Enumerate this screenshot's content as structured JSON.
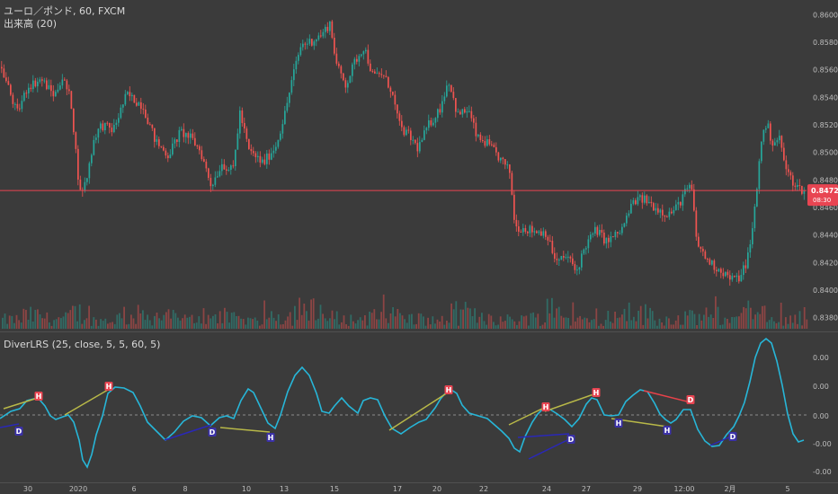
{
  "symbol_line": "ユーロ／ポンド, 60, FXCM",
  "volume_line": "出来高 (20)",
  "indicator_line": "DiverLRS (25, close, 5, 5, 60, 5)",
  "colors": {
    "background": "#3b3b3b",
    "up": "#26a69a",
    "down": "#ef5350",
    "price_line": "#e84552",
    "osc": "#27b6d8",
    "zero": "#8c8c8c",
    "bull_div": "#2a28b8",
    "bear_div": "#b8b848",
    "red_div": "#e8424a",
    "axis_text": "#bdbdbd"
  },
  "chart_data": [
    {
      "type": "candlestick",
      "title": "ユーロ／ポンド, 60, FXCM",
      "y_ticks": [
        "0.86000",
        "0.85800",
        "0.85600",
        "0.85400",
        "0.85200",
        "0.85000",
        "0.84800",
        "0.84600",
        "0.84400",
        "0.84200",
        "0.84000",
        "0.83800"
      ],
      "ylim": [
        0.8372,
        0.8608
      ],
      "last_price": "0.84723",
      "countdown": "08:30",
      "x_ticks": [
        "30",
        "2020",
        "6",
        "8",
        "10",
        "13",
        "15",
        "17",
        "20",
        "22",
        "24",
        "27",
        "29",
        "12:00",
        "2月",
        "5"
      ],
      "path_points": [
        [
          0,
          0.8562
        ],
        [
          8,
          0.8548
        ],
        [
          18,
          0.8528
        ],
        [
          30,
          0.8548
        ],
        [
          45,
          0.8553
        ],
        [
          60,
          0.8541
        ],
        [
          68,
          0.8555
        ],
        [
          78,
          0.8538
        ],
        [
          88,
          0.847
        ],
        [
          95,
          0.8479
        ],
        [
          104,
          0.8511
        ],
        [
          112,
          0.852
        ],
        [
          125,
          0.8516
        ],
        [
          140,
          0.8542
        ],
        [
          158,
          0.8534
        ],
        [
          172,
          0.8508
        ],
        [
          186,
          0.8498
        ],
        [
          200,
          0.8515
        ],
        [
          212,
          0.851
        ],
        [
          222,
          0.8501
        ],
        [
          234,
          0.8476
        ],
        [
          246,
          0.8492
        ],
        [
          258,
          0.8486
        ],
        [
          266,
          0.8529
        ],
        [
          276,
          0.8501
        ],
        [
          292,
          0.8492
        ],
        [
          306,
          0.8505
        ],
        [
          316,
          0.8528
        ],
        [
          324,
          0.8553
        ],
        [
          334,
          0.8578
        ],
        [
          346,
          0.8581
        ],
        [
          358,
          0.8586
        ],
        [
          366,
          0.8594
        ],
        [
          374,
          0.8562
        ],
        [
          384,
          0.8549
        ],
        [
          394,
          0.8566
        ],
        [
          404,
          0.8577
        ],
        [
          414,
          0.8555
        ],
        [
          424,
          0.8557
        ],
        [
          434,
          0.8546
        ],
        [
          444,
          0.8518
        ],
        [
          454,
          0.8512
        ],
        [
          464,
          0.8503
        ],
        [
          476,
          0.852
        ],
        [
          488,
          0.8531
        ],
        [
          498,
          0.8553
        ],
        [
          508,
          0.8527
        ],
        [
          520,
          0.8531
        ],
        [
          530,
          0.851
        ],
        [
          540,
          0.8507
        ],
        [
          552,
          0.8498
        ],
        [
          566,
          0.8486
        ],
        [
          572,
          0.8446
        ],
        [
          582,
          0.8445
        ],
        [
          594,
          0.8443
        ],
        [
          606,
          0.8442
        ],
        [
          618,
          0.842
        ],
        [
          630,
          0.8425
        ],
        [
          640,
          0.8413
        ],
        [
          650,
          0.8432
        ],
        [
          662,
          0.8444
        ],
        [
          674,
          0.8435
        ],
        [
          690,
          0.8443
        ],
        [
          704,
          0.8465
        ],
        [
          716,
          0.8466
        ],
        [
          728,
          0.846
        ],
        [
          742,
          0.8455
        ],
        [
          752,
          0.846
        ],
        [
          760,
          0.847
        ],
        [
          768,
          0.8476
        ],
        [
          774,
          0.8435
        ],
        [
          782,
          0.8425
        ],
        [
          792,
          0.8418
        ],
        [
          802,
          0.8414
        ],
        [
          812,
          0.8408
        ],
        [
          820,
          0.8408
        ],
        [
          828,
          0.8418
        ],
        [
          834,
          0.8433
        ],
        [
          840,
          0.8468
        ],
        [
          846,
          0.851
        ],
        [
          852,
          0.8521
        ],
        [
          858,
          0.8507
        ],
        [
          866,
          0.851
        ],
        [
          874,
          0.8486
        ],
        [
          882,
          0.8478
        ],
        [
          888,
          0.8474
        ],
        [
          894,
          0.8472
        ]
      ]
    },
    {
      "type": "bar",
      "title": "出来高 (20)",
      "note": "volume histogram, relative heights 0-1",
      "levels": [
        0.35,
        0.55,
        0.4,
        0.7,
        0.3,
        0.45,
        0.6,
        0.5,
        0.35,
        0.65,
        0.4,
        0.3,
        0.55,
        0.8,
        0.45,
        0.35,
        0.5,
        0.6,
        0.4,
        0.3,
        0.7,
        0.55,
        0.35,
        0.45,
        0.9,
        0.4,
        0.3,
        0.5,
        0.65,
        0.35,
        0.45,
        0.55,
        0.4,
        0.6,
        0.3,
        0.5
      ]
    },
    {
      "type": "line",
      "title": "DiverLRS (25, close, 5, 5, 60, 5)",
      "y_ticks": [
        "0.00",
        "0.00",
        "0.00",
        "-0.00",
        "-0.00"
      ],
      "osc_points": [
        [
          0,
          466
        ],
        [
          12,
          458
        ],
        [
          22,
          455
        ],
        [
          30,
          446
        ],
        [
          38,
          444
        ],
        [
          44,
          445
        ],
        [
          50,
          452
        ],
        [
          56,
          463
        ],
        [
          62,
          467
        ],
        [
          70,
          464
        ],
        [
          76,
          462
        ],
        [
          82,
          470
        ],
        [
          88,
          490
        ],
        [
          92,
          512
        ],
        [
          97,
          520
        ],
        [
          102,
          506
        ],
        [
          107,
          484
        ],
        [
          114,
          463
        ],
        [
          120,
          438
        ],
        [
          128,
          431
        ],
        [
          138,
          432
        ],
        [
          148,
          437
        ],
        [
          156,
          452
        ],
        [
          164,
          470
        ],
        [
          174,
          480
        ],
        [
          184,
          490
        ],
        [
          194,
          481
        ],
        [
          204,
          469
        ],
        [
          214,
          463
        ],
        [
          224,
          465
        ],
        [
          234,
          474
        ],
        [
          244,
          465
        ],
        [
          252,
          463
        ],
        [
          260,
          466
        ],
        [
          268,
          446
        ],
        [
          276,
          433
        ],
        [
          282,
          437
        ],
        [
          290,
          454
        ],
        [
          298,
          471
        ],
        [
          306,
          477
        ],
        [
          312,
          462
        ],
        [
          320,
          436
        ],
        [
          328,
          418
        ],
        [
          336,
          409
        ],
        [
          344,
          418
        ],
        [
          352,
          438
        ],
        [
          358,
          458
        ],
        [
          366,
          460
        ],
        [
          372,
          452
        ],
        [
          380,
          443
        ],
        [
          388,
          452
        ],
        [
          398,
          460
        ],
        [
          404,
          446
        ],
        [
          412,
          443
        ],
        [
          420,
          445
        ],
        [
          428,
          463
        ],
        [
          436,
          477
        ],
        [
          446,
          483
        ],
        [
          456,
          476
        ],
        [
          466,
          470
        ],
        [
          474,
          467
        ],
        [
          484,
          454
        ],
        [
          490,
          444
        ],
        [
          496,
          437
        ],
        [
          502,
          434
        ],
        [
          508,
          438
        ],
        [
          514,
          451
        ],
        [
          522,
          460
        ],
        [
          532,
          463
        ],
        [
          542,
          466
        ],
        [
          550,
          473
        ],
        [
          558,
          480
        ],
        [
          566,
          488
        ],
        [
          572,
          499
        ],
        [
          578,
          503
        ],
        [
          584,
          486
        ],
        [
          592,
          470
        ],
        [
          598,
          461
        ],
        [
          604,
          455
        ],
        [
          612,
          456
        ],
        [
          620,
          461
        ],
        [
          628,
          467
        ],
        [
          636,
          475
        ],
        [
          644,
          466
        ],
        [
          652,
          450
        ],
        [
          658,
          443
        ],
        [
          664,
          445
        ],
        [
          672,
          462
        ],
        [
          680,
          463
        ],
        [
          688,
          462
        ],
        [
          696,
          447
        ],
        [
          704,
          440
        ],
        [
          712,
          434
        ],
        [
          720,
          436
        ],
        [
          728,
          449
        ],
        [
          734,
          461
        ],
        [
          740,
          467
        ],
        [
          746,
          471
        ],
        [
          752,
          467
        ],
        [
          760,
          456
        ],
        [
          768,
          456
        ],
        [
          776,
          478
        ],
        [
          784,
          491
        ],
        [
          792,
          497
        ],
        [
          800,
          496
        ],
        [
          808,
          484
        ],
        [
          816,
          475
        ],
        [
          822,
          463
        ],
        [
          828,
          448
        ],
        [
          834,
          425
        ],
        [
          840,
          398
        ],
        [
          846,
          382
        ],
        [
          852,
          377
        ],
        [
          858,
          382
        ],
        [
          864,
          402
        ],
        [
          870,
          429
        ],
        [
          876,
          461
        ],
        [
          882,
          483
        ],
        [
          888,
          492
        ],
        [
          894,
          490
        ]
      ],
      "lines": [
        {
          "color": "bear",
          "from": [
            4,
            455
          ],
          "to": [
            42,
            443
          ]
        },
        {
          "color": "bull",
          "from": [
            0,
            476
          ],
          "to": [
            21,
            472
          ]
        },
        {
          "color": "bear",
          "from": [
            72,
            462
          ],
          "to": [
            120,
            434
          ]
        },
        {
          "color": "bull",
          "from": [
            183,
            490
          ],
          "to": [
            235,
            473
          ]
        },
        {
          "color": "bear",
          "from": [
            245,
            476
          ],
          "to": [
            300,
            481
          ]
        },
        {
          "color": "bear",
          "from": [
            433,
            479
          ],
          "to": [
            498,
            437
          ]
        },
        {
          "color": "bear",
          "from": [
            566,
            473
          ],
          "to": [
            607,
            453
          ]
        },
        {
          "color": "bear",
          "from": [
            606,
            458
          ],
          "to": [
            663,
            438
          ]
        },
        {
          "color": "bull",
          "from": [
            588,
            511
          ],
          "to": [
            635,
            488
          ]
        },
        {
          "color": "bull",
          "from": [
            576,
            487
          ],
          "to": [
            633,
            483
          ]
        },
        {
          "color": "bear",
          "from": [
            680,
            466
          ],
          "to": [
            742,
            475
          ]
        },
        {
          "color": "red",
          "from": [
            716,
            435
          ],
          "to": [
            768,
            448
          ]
        },
        {
          "color": "bull",
          "from": [
            790,
            496
          ],
          "to": [
            815,
            485
          ]
        }
      ],
      "markers": [
        {
          "label": "H",
          "type": "bear",
          "x": 43,
          "y": 441
        },
        {
          "label": "H",
          "type": "bear",
          "x": 121,
          "y": 430
        },
        {
          "label": "H",
          "type": "bear",
          "x": 499,
          "y": 434
        },
        {
          "label": "H",
          "type": "bear",
          "x": 607,
          "y": 453
        },
        {
          "label": "H",
          "type": "bear",
          "x": 663,
          "y": 437
        },
        {
          "label": "D",
          "type": "red",
          "x": 768,
          "y": 445
        },
        {
          "label": "D",
          "type": "bull",
          "x": 21,
          "y": 480
        },
        {
          "label": "D",
          "type": "bull",
          "x": 236,
          "y": 481
        },
        {
          "label": "H",
          "type": "bull",
          "x": 301,
          "y": 487
        },
        {
          "label": "D",
          "type": "bull",
          "x": 635,
          "y": 489
        },
        {
          "label": "H",
          "type": "bull",
          "x": 688,
          "y": 471
        },
        {
          "label": "H",
          "type": "bull",
          "x": 742,
          "y": 479
        },
        {
          "label": "D",
          "type": "bull",
          "x": 815,
          "y": 486
        }
      ]
    }
  ]
}
